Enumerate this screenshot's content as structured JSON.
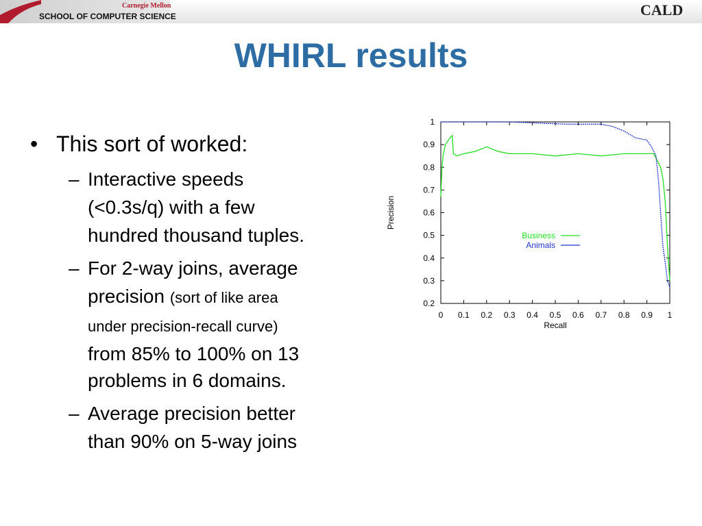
{
  "header": {
    "university": "Carnegie Mellon",
    "school": "SCHOOL OF COMPUTER SCIENCE",
    "logo": "CALD"
  },
  "title": "WHIRL results",
  "bullets": [
    {
      "text": "This sort of worked:",
      "sub": [
        {
          "lines": [
            "Interactive speeds",
            "(<0.3s/q) with a few",
            "hundred thousand tuples."
          ]
        },
        {
          "lines": [
            "For 2-way joins, average",
            "precision",
            "(sort of like area",
            "under precision-recall curve)",
            "from 85% to 100% on 13",
            "problems in 6 domains."
          ]
        },
        {
          "lines": [
            "Average precision better",
            "than 90% on 5-way joins"
          ]
        }
      ]
    }
  ],
  "chart_data": {
    "type": "line",
    "xlabel": "Recall",
    "ylabel": "Precision",
    "xlim": [
      0,
      1
    ],
    "ylim": [
      0.2,
      1
    ],
    "xticks": [
      0,
      0.1,
      0.2,
      0.3,
      0.4,
      0.5,
      0.6,
      0.7,
      0.8,
      0.9,
      1
    ],
    "yticks": [
      0.2,
      0.3,
      0.4,
      0.5,
      0.6,
      0.7,
      0.8,
      0.9,
      1
    ],
    "legend": "center-right",
    "series": [
      {
        "name": "Business",
        "color": "#22dd22",
        "x": [
          0,
          0.005,
          0.01,
          0.02,
          0.04,
          0.05,
          0.055,
          0.07,
          0.1,
          0.15,
          0.2,
          0.25,
          0.3,
          0.4,
          0.5,
          0.6,
          0.7,
          0.8,
          0.9,
          0.93,
          0.94,
          0.95,
          0.96,
          0.97,
          0.98,
          0.99,
          1
        ],
        "values": [
          0.67,
          0.8,
          0.85,
          0.9,
          0.93,
          0.94,
          0.86,
          0.85,
          0.86,
          0.87,
          0.89,
          0.87,
          0.86,
          0.86,
          0.85,
          0.86,
          0.85,
          0.86,
          0.86,
          0.86,
          0.84,
          0.82,
          0.8,
          0.75,
          0.65,
          0.45,
          0.3
        ]
      },
      {
        "name": "Animals",
        "color": "#2233cc",
        "x": [
          0,
          0.3,
          0.55,
          0.7,
          0.75,
          0.8,
          0.85,
          0.9,
          0.92,
          0.93,
          0.94,
          0.95,
          0.96,
          0.97,
          0.98,
          0.99,
          1
        ],
        "values": [
          1,
          1,
          0.99,
          0.99,
          0.98,
          0.96,
          0.93,
          0.92,
          0.89,
          0.87,
          0.85,
          0.75,
          0.6,
          0.45,
          0.38,
          0.3,
          0.27
        ]
      }
    ]
  }
}
